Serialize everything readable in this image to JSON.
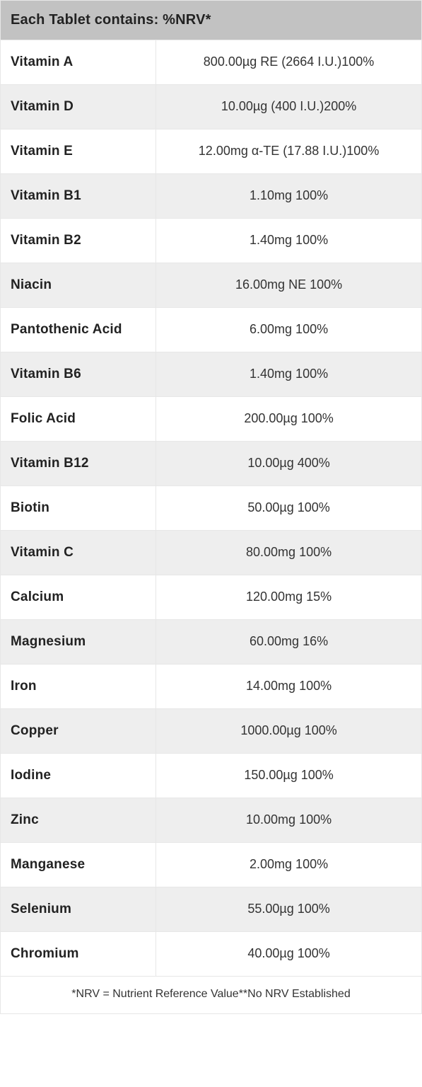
{
  "table": {
    "header": "Each Tablet contains: %NRV*",
    "header_bg": "#c2c2c2",
    "row_bg_odd": "#ffffff",
    "row_bg_even": "#eeeeee",
    "border_color": "#e7e7e7",
    "name_col_width_pct": 37,
    "value_col_width_pct": 63,
    "name_font_weight": 700,
    "value_font_weight": 400,
    "name_font_size_pt": 14,
    "value_font_size_pt": 13,
    "rows": [
      {
        "name": "Vitamin A",
        "value": "800.00µg RE (2664 I.U.)100%"
      },
      {
        "name": "Vitamin D",
        "value": "10.00µg (400 I.U.)200%"
      },
      {
        "name": "Vitamin E",
        "value": "12.00mg α-TE (17.88 I.U.)100%"
      },
      {
        "name": "Vitamin B1",
        "value": "1.10mg 100%"
      },
      {
        "name": "Vitamin B2",
        "value": "1.40mg 100%"
      },
      {
        "name": "Niacin",
        "value": "16.00mg NE 100%"
      },
      {
        "name": "Pantothenic Acid",
        "value": "6.00mg 100%"
      },
      {
        "name": "Vitamin B6",
        "value": "1.40mg 100%"
      },
      {
        "name": "Folic Acid",
        "value": "200.00µg 100%"
      },
      {
        "name": "Vitamin B12",
        "value": "10.00µg 400%"
      },
      {
        "name": "Biotin",
        "value": "50.00µg 100%"
      },
      {
        "name": "Vitamin C",
        "value": "80.00mg 100%"
      },
      {
        "name": "Calcium",
        "value": "120.00mg 15%"
      },
      {
        "name": "Magnesium",
        "value": "60.00mg 16%"
      },
      {
        "name": "Iron",
        "value": "14.00mg 100%"
      },
      {
        "name": "Copper",
        "value": "1000.00µg 100%"
      },
      {
        "name": "Iodine",
        "value": "150.00µg 100%"
      },
      {
        "name": "Zinc",
        "value": "10.00mg 100%"
      },
      {
        "name": "Manganese",
        "value": "2.00mg 100%"
      },
      {
        "name": "Selenium",
        "value": "55.00µg 100%"
      },
      {
        "name": "Chromium",
        "value": "40.00µg 100%"
      }
    ],
    "footer": "*NRV = Nutrient Reference Value**No NRV Established"
  }
}
